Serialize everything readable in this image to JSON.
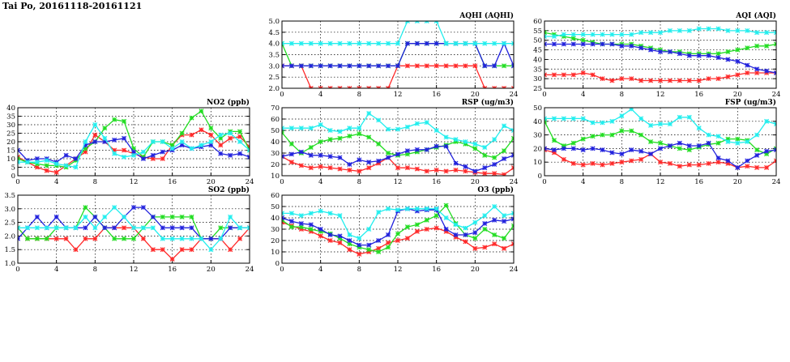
{
  "page_title": "Tai Po, 20161118-20161121",
  "colors": {
    "day1": "#ff2a2a",
    "day2": "#22dd22",
    "day3": "#2222dd",
    "day4": "#22eeee"
  },
  "chart_data": [
    {
      "id": "aqhi",
      "type": "line",
      "title": "AQHI (AQHI)",
      "xlim": [
        0,
        24
      ],
      "ylim": [
        2.0,
        5.0
      ],
      "xticks": [
        "0",
        "4",
        "8",
        "12",
        "16",
        "20",
        "24"
      ],
      "yticks": [
        "2.0",
        "2.5",
        "3.0",
        "3.5",
        "4.0",
        "4.5",
        "5.0"
      ],
      "x": [
        0,
        1,
        2,
        3,
        4,
        5,
        6,
        7,
        8,
        9,
        10,
        11,
        12,
        13,
        14,
        15,
        16,
        17,
        18,
        19,
        20,
        21,
        22,
        23,
        24
      ],
      "series": [
        {
          "color": "#ff2a2a",
          "values": [
            3,
            3,
            3,
            2,
            2,
            2,
            2,
            2,
            2,
            2,
            2,
            2,
            3,
            3,
            3,
            3,
            3,
            3,
            3,
            3,
            3,
            2,
            2,
            2,
            2
          ]
        },
        {
          "color": "#22dd22",
          "values": [
            4,
            3,
            3,
            3,
            3,
            3,
            3,
            3,
            3,
            3,
            3,
            3,
            3,
            4,
            4,
            4,
            4,
            4,
            4,
            4,
            4,
            3,
            3,
            3,
            3
          ]
        },
        {
          "color": "#2222dd",
          "values": [
            3,
            3,
            3,
            3,
            3,
            3,
            3,
            3,
            3,
            3,
            3,
            3,
            3,
            4,
            4,
            4,
            4,
            4,
            4,
            4,
            4,
            3,
            3,
            4,
            3
          ]
        },
        {
          "color": "#22eeee",
          "values": [
            4,
            4,
            4,
            4,
            4,
            4,
            4,
            4,
            4,
            4,
            4,
            4,
            4,
            5,
            5,
            5,
            5,
            4,
            4,
            4,
            4,
            4,
            4,
            4,
            4
          ]
        }
      ]
    },
    {
      "id": "aqi",
      "type": "line",
      "title": "AQI (AQI)",
      "xlim": [
        0,
        24
      ],
      "ylim": [
        25,
        60
      ],
      "xticks": [
        "0",
        "4",
        "8",
        "12",
        "16",
        "20",
        "24"
      ],
      "yticks": [
        "25",
        "30",
        "35",
        "40",
        "45",
        "50",
        "55",
        "60"
      ],
      "x": [
        0,
        1,
        2,
        3,
        4,
        5,
        6,
        7,
        8,
        9,
        10,
        11,
        12,
        13,
        14,
        15,
        16,
        17,
        18,
        19,
        20,
        21,
        22,
        23,
        24
      ],
      "series": [
        {
          "color": "#ff2a2a",
          "values": [
            32,
            32,
            32,
            32,
            33,
            32,
            30,
            29,
            30,
            30,
            29,
            29,
            29,
            29,
            29,
            29,
            29,
            30,
            30,
            31,
            32,
            33,
            33,
            33,
            33
          ]
        },
        {
          "color": "#22dd22",
          "values": [
            54,
            53,
            52,
            51,
            50,
            49,
            48,
            48,
            48,
            48,
            47,
            46,
            45,
            44,
            44,
            43,
            43,
            43,
            43,
            44,
            45,
            46,
            47,
            47,
            48
          ]
        },
        {
          "color": "#2222dd",
          "values": [
            48,
            48,
            48,
            48,
            48,
            48,
            48,
            48,
            47,
            47,
            46,
            45,
            44,
            44,
            43,
            42,
            42,
            42,
            41,
            40,
            39,
            37,
            35,
            34,
            33
          ]
        },
        {
          "color": "#22eeee",
          "values": [
            52,
            52,
            53,
            53,
            53,
            53,
            53,
            53,
            53,
            53,
            54,
            54,
            54,
            55,
            55,
            55,
            56,
            56,
            56,
            55,
            55,
            55,
            54,
            54,
            54
          ]
        }
      ]
    },
    {
      "id": "no2",
      "type": "line",
      "title": "NO2 (ppb)",
      "xlim": [
        0,
        24
      ],
      "ylim": [
        0,
        40
      ],
      "xticks": [
        "0",
        "4",
        "8",
        "12",
        "16",
        "20",
        "24"
      ],
      "yticks": [
        "0",
        "5",
        "10",
        "15",
        "20",
        "25",
        "30",
        "35",
        "40"
      ],
      "x": [
        0,
        1,
        2,
        3,
        4,
        5,
        6,
        7,
        8,
        9,
        10,
        11,
        12,
        13,
        14,
        15,
        16,
        17,
        18,
        19,
        20,
        21,
        22,
        23,
        24
      ],
      "series": [
        {
          "color": "#ff2a2a",
          "values": [
            11,
            8,
            5,
            3,
            2,
            6,
            10,
            14,
            24,
            20,
            15,
            15,
            13,
            11,
            10,
            10,
            18,
            24,
            24,
            27,
            24,
            18,
            22,
            23,
            17
          ]
        },
        {
          "color": "#22dd22",
          "values": [
            10,
            8,
            7,
            6,
            6,
            5,
            9,
            16,
            20,
            28,
            33,
            32,
            16,
            11,
            20,
            20,
            18,
            25,
            34,
            38,
            28,
            22,
            26,
            26,
            15
          ]
        },
        {
          "color": "#2222dd",
          "values": [
            15,
            9,
            10,
            10,
            8,
            12,
            10,
            18,
            20,
            20,
            21,
            22,
            14,
            10,
            12,
            14,
            15,
            18,
            16,
            17,
            18,
            13,
            12,
            13,
            11
          ]
        },
        {
          "color": "#22eeee",
          "values": [
            8,
            8,
            8,
            9,
            7,
            6,
            5,
            20,
            30,
            22,
            13,
            11,
            12,
            14,
            20,
            20,
            16,
            20,
            16,
            18,
            20,
            24,
            25,
            20,
            15
          ]
        }
      ]
    },
    {
      "id": "rsp",
      "type": "line",
      "title": "RSP (ug/m3)",
      "xlim": [
        0,
        24
      ],
      "ylim": [
        10,
        70
      ],
      "xticks": [
        "0",
        "4",
        "8",
        "12",
        "16",
        "20",
        "24"
      ],
      "yticks": [
        "10",
        "20",
        "30",
        "40",
        "50",
        "60",
        "70"
      ],
      "x": [
        0,
        1,
        2,
        3,
        4,
        5,
        6,
        7,
        8,
        9,
        10,
        11,
        12,
        13,
        14,
        15,
        16,
        17,
        18,
        19,
        20,
        21,
        22,
        23,
        24
      ],
      "series": [
        {
          "color": "#ff2a2a",
          "values": [
            27,
            22,
            19,
            17,
            18,
            17,
            16,
            15,
            14,
            17,
            21,
            26,
            17,
            17,
            16,
            14,
            15,
            14,
            15,
            14,
            13,
            12,
            12,
            11,
            17
          ]
        },
        {
          "color": "#22dd22",
          "values": [
            48,
            38,
            30,
            35,
            40,
            42,
            43,
            45,
            47,
            44,
            38,
            30,
            28,
            29,
            31,
            33,
            35,
            37,
            40,
            38,
            34,
            28,
            26,
            32,
            43
          ]
        },
        {
          "color": "#2222dd",
          "values": [
            27,
            29,
            31,
            28,
            28,
            27,
            26,
            20,
            24,
            22,
            23,
            26,
            29,
            32,
            33,
            33,
            36,
            36,
            21,
            18,
            14,
            17,
            20,
            25,
            28
          ]
        },
        {
          "color": "#22eeee",
          "values": [
            52,
            52,
            52,
            52,
            55,
            50,
            49,
            52,
            52,
            65,
            59,
            51,
            51,
            53,
            56,
            57,
            50,
            44,
            42,
            40,
            38,
            35,
            42,
            54,
            50
          ]
        }
      ]
    },
    {
      "id": "fsp",
      "type": "line",
      "title": "FSP (ug/m3)",
      "xlim": [
        0,
        24
      ],
      "ylim": [
        0,
        50
      ],
      "xticks": [
        "0",
        "4",
        "8",
        "12",
        "16",
        "20",
        "24"
      ],
      "yticks": [
        "0",
        "10",
        "20",
        "30",
        "40",
        "50"
      ],
      "x": [
        0,
        1,
        2,
        3,
        4,
        5,
        6,
        7,
        8,
        9,
        10,
        11,
        12,
        13,
        14,
        15,
        16,
        17,
        18,
        19,
        20,
        21,
        22,
        23,
        24
      ],
      "series": [
        {
          "color": "#ff2a2a",
          "values": [
            19,
            17,
            12,
            9,
            8,
            9,
            8,
            9,
            10,
            11,
            12,
            16,
            10,
            9,
            7,
            8,
            8,
            9,
            10,
            9,
            6,
            7,
            6,
            6,
            11
          ]
        },
        {
          "color": "#22dd22",
          "values": [
            40,
            26,
            22,
            24,
            27,
            29,
            30,
            30,
            33,
            33,
            30,
            25,
            24,
            22,
            20,
            19,
            21,
            23,
            24,
            27,
            27,
            26,
            19,
            16,
            20
          ]
        },
        {
          "color": "#2222dd",
          "values": [
            20,
            19,
            20,
            20,
            19,
            20,
            19,
            17,
            16,
            19,
            18,
            16,
            20,
            22,
            24,
            22,
            22,
            24,
            13,
            11,
            6,
            11,
            15,
            18,
            19
          ]
        },
        {
          "color": "#22eeee",
          "values": [
            42,
            42,
            42,
            42,
            42,
            39,
            39,
            40,
            44,
            49,
            42,
            37,
            38,
            38,
            43,
            43,
            35,
            30,
            29,
            25,
            24,
            25,
            30,
            40,
            38
          ]
        }
      ]
    },
    {
      "id": "so2",
      "type": "line",
      "title": "SO2 (ppb)",
      "xlim": [
        0,
        24
      ],
      "ylim": [
        1.0,
        3.5
      ],
      "xticks": [
        "0",
        "4",
        "8",
        "12",
        "16",
        "20",
        "24"
      ],
      "yticks": [
        "1.0",
        "1.5",
        "2.0",
        "2.5",
        "3.0",
        "3.5"
      ],
      "x": [
        0,
        1,
        2,
        3,
        4,
        5,
        6,
        7,
        8,
        9,
        10,
        11,
        12,
        13,
        14,
        15,
        16,
        17,
        18,
        19,
        20,
        21,
        22,
        23,
        24
      ],
      "series": [
        {
          "color": "#ff2a2a",
          "values": [
            2.3,
            1.9,
            1.9,
            1.9,
            1.9,
            1.9,
            1.5,
            1.9,
            1.9,
            2.3,
            2.3,
            2.3,
            2.3,
            1.9,
            1.5,
            1.5,
            1.15,
            1.5,
            1.5,
            1.9,
            1.9,
            1.9,
            1.5,
            1.9,
            2.3
          ]
        },
        {
          "color": "#22dd22",
          "values": [
            2.3,
            1.9,
            1.9,
            1.9,
            2.3,
            2.3,
            2.3,
            3.05,
            2.7,
            2.3,
            1.9,
            1.9,
            1.9,
            2.3,
            2.7,
            2.7,
            2.7,
            2.7,
            2.7,
            1.9,
            1.9,
            2.3,
            2.3,
            2.3,
            2.3
          ]
        },
        {
          "color": "#2222dd",
          "values": [
            1.9,
            2.3,
            2.7,
            2.3,
            2.7,
            2.3,
            2.3,
            2.3,
            2.7,
            2.3,
            2.3,
            2.7,
            3.05,
            3.05,
            2.7,
            2.3,
            2.3,
            2.3,
            2.3,
            1.9,
            1.9,
            1.9,
            2.3,
            2.3,
            2.3
          ]
        },
        {
          "color": "#22eeee",
          "values": [
            2.3,
            2.3,
            2.3,
            2.3,
            2.3,
            2.3,
            2.3,
            2.7,
            2.3,
            2.7,
            3.05,
            2.7,
            2.3,
            2.3,
            2.3,
            1.9,
            1.9,
            1.9,
            1.9,
            1.9,
            1.5,
            1.9,
            2.7,
            2.3,
            2.3
          ]
        }
      ]
    },
    {
      "id": "o3",
      "type": "line",
      "title": "O3 (ppb)",
      "xlim": [
        0,
        24
      ],
      "ylim": [
        0,
        60
      ],
      "xticks": [
        "0",
        "4",
        "8",
        "12",
        "16",
        "20",
        "24"
      ],
      "yticks": [
        "0",
        "10",
        "20",
        "30",
        "40",
        "50",
        "60"
      ],
      "x": [
        0,
        1,
        2,
        3,
        4,
        5,
        6,
        7,
        8,
        9,
        10,
        11,
        12,
        13,
        14,
        15,
        16,
        17,
        18,
        19,
        20,
        21,
        22,
        23,
        24
      ],
      "series": [
        {
          "color": "#ff2a2a",
          "values": [
            36,
            33,
            30,
            28,
            24,
            20,
            18,
            12,
            8,
            10,
            13,
            18,
            20,
            22,
            28,
            30,
            31,
            28,
            23,
            19,
            13,
            14,
            17,
            13,
            17
          ]
        },
        {
          "color": "#22dd22",
          "values": [
            38,
            32,
            32,
            30,
            28,
            26,
            22,
            17,
            14,
            12,
            10,
            14,
            26,
            32,
            34,
            38,
            42,
            51,
            35,
            25,
            22,
            30,
            25,
            22,
            33
          ]
        },
        {
          "color": "#2222dd",
          "values": [
            40,
            37,
            35,
            34,
            30,
            25,
            24,
            20,
            16,
            16,
            20,
            25,
            46,
            48,
            46,
            47,
            47,
            30,
            25,
            25,
            27,
            35,
            38,
            37,
            39
          ]
        },
        {
          "color": "#22eeee",
          "values": [
            44,
            44,
            42,
            44,
            46,
            44,
            42,
            25,
            22,
            30,
            45,
            48,
            47,
            48,
            48,
            48,
            48,
            40,
            34,
            31,
            36,
            42,
            50,
            42,
            44
          ]
        }
      ]
    }
  ]
}
